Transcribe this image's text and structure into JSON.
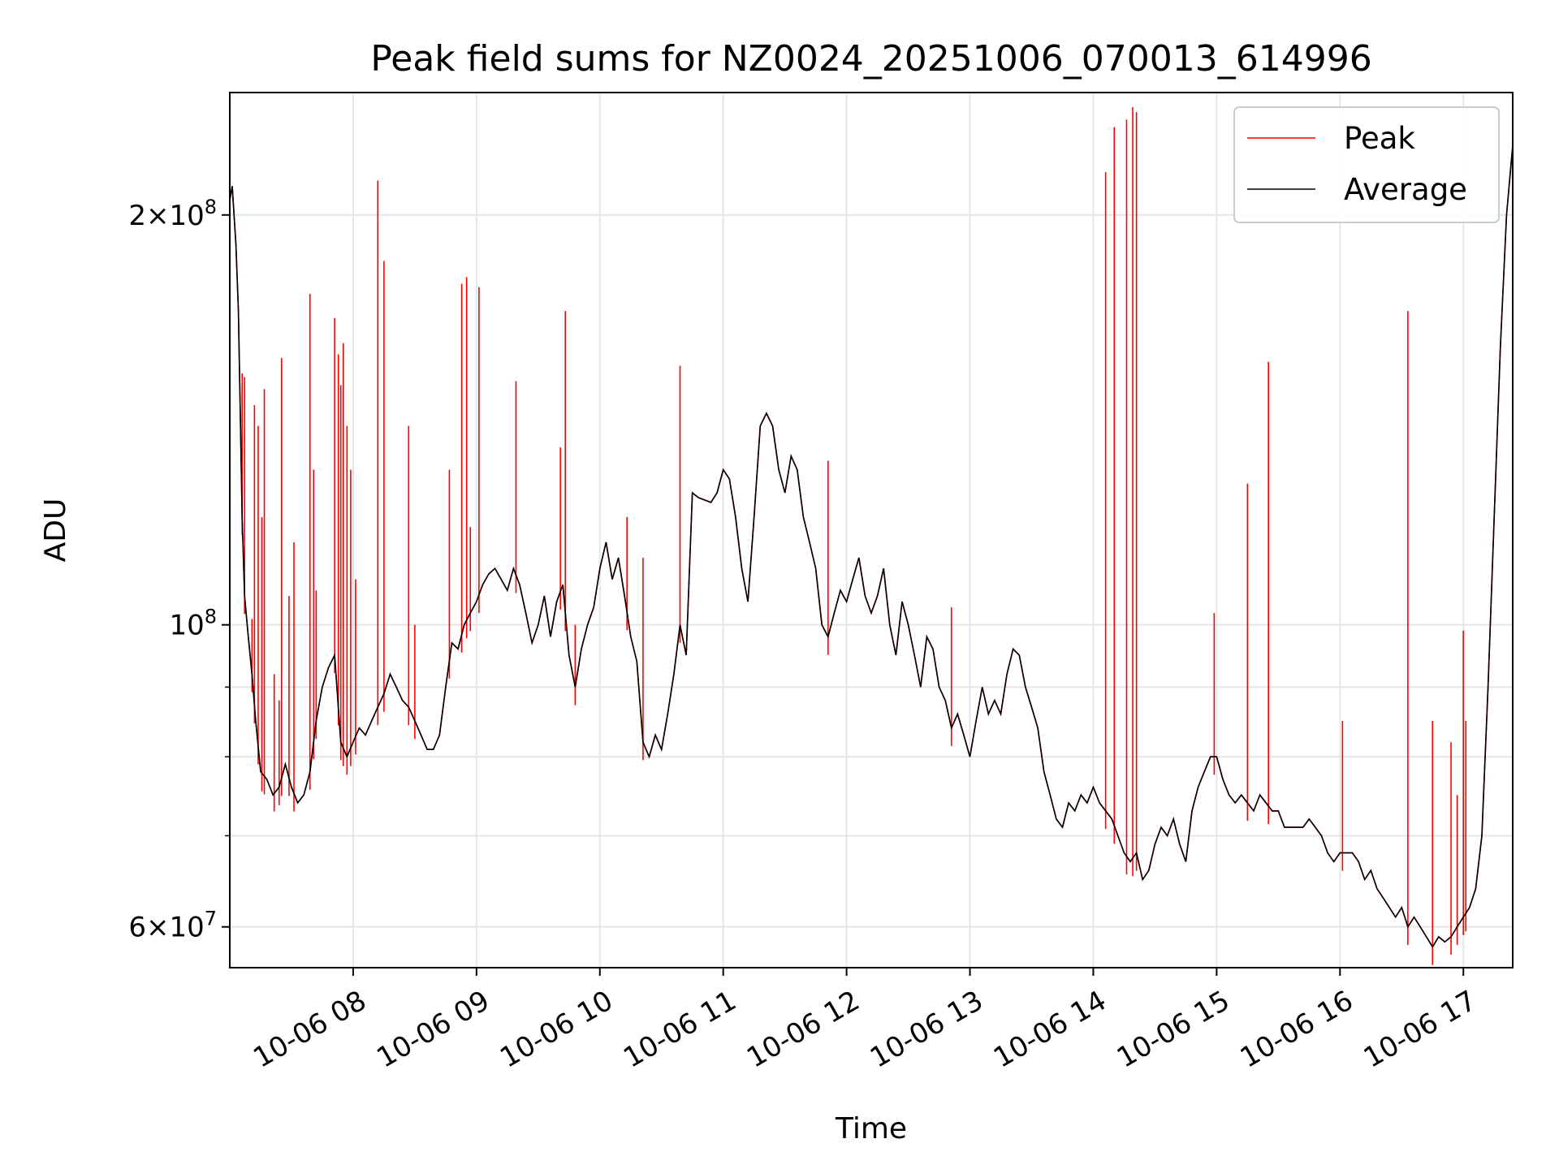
{
  "chart_data": {
    "type": "line",
    "title": "Peak field sums for NZ0024_20251006_070013_614996",
    "xlabel": "Time",
    "ylabel": "ADU",
    "yscale": "log",
    "grid": true,
    "legend_position": "upper-right",
    "xlim_hours": [
      7.0,
      17.4
    ],
    "ylim": [
      56000000,
      246000000
    ],
    "x_ticks": [
      {
        "hour": 8,
        "label": "10-06 08"
      },
      {
        "hour": 9,
        "label": "10-06 09"
      },
      {
        "hour": 10,
        "label": "10-06 10"
      },
      {
        "hour": 11,
        "label": "10-06 11"
      },
      {
        "hour": 12,
        "label": "10-06 12"
      },
      {
        "hour": 13,
        "label": "10-06 13"
      },
      {
        "hour": 14,
        "label": "10-06 14"
      },
      {
        "hour": 15,
        "label": "10-06 15"
      },
      {
        "hour": 16,
        "label": "10-06 16"
      },
      {
        "hour": 17,
        "label": "10-06 17"
      }
    ],
    "y_major_ticks": [
      {
        "value": 60000000,
        "mantissa": "6",
        "exponent": "7",
        "has_mantissa": true
      },
      {
        "value": 100000000,
        "mantissa": "",
        "exponent": "8",
        "has_mantissa": false
      },
      {
        "value": 200000000,
        "mantissa": "2",
        "exponent": "8",
        "has_mantissa": true
      }
    ],
    "y_tick_base": "10",
    "y_tick_times": "×",
    "y_minor_ticks": [
      70000000,
      80000000,
      90000000
    ],
    "series": [
      {
        "name": "Average",
        "color": "#000000",
        "points": [
          [
            7.0,
            205000000
          ],
          [
            7.02,
            210000000
          ],
          [
            7.05,
            190000000
          ],
          [
            7.07,
            170000000
          ],
          [
            7.09,
            135000000
          ],
          [
            7.1,
            120000000
          ],
          [
            7.12,
            105000000
          ],
          [
            7.15,
            98000000
          ],
          [
            7.18,
            92000000
          ],
          [
            7.21,
            85000000
          ],
          [
            7.25,
            78000000
          ],
          [
            7.3,
            77000000
          ],
          [
            7.35,
            75000000
          ],
          [
            7.4,
            76000000
          ],
          [
            7.45,
            79000000
          ],
          [
            7.5,
            76000000
          ],
          [
            7.55,
            74000000
          ],
          [
            7.6,
            75000000
          ],
          [
            7.65,
            78000000
          ],
          [
            7.7,
            85000000
          ],
          [
            7.75,
            90000000
          ],
          [
            7.8,
            93000000
          ],
          [
            7.85,
            95000000
          ],
          [
            7.9,
            82000000
          ],
          [
            7.95,
            80000000
          ],
          [
            8.0,
            82000000
          ],
          [
            8.05,
            84000000
          ],
          [
            8.1,
            83000000
          ],
          [
            8.15,
            85000000
          ],
          [
            8.2,
            87000000
          ],
          [
            8.25,
            89000000
          ],
          [
            8.3,
            92000000
          ],
          [
            8.35,
            90000000
          ],
          [
            8.4,
            88000000
          ],
          [
            8.45,
            87000000
          ],
          [
            8.5,
            85000000
          ],
          [
            8.55,
            83000000
          ],
          [
            8.6,
            81000000
          ],
          [
            8.65,
            81000000
          ],
          [
            8.7,
            83000000
          ],
          [
            8.75,
            90000000
          ],
          [
            8.8,
            97000000
          ],
          [
            8.85,
            96000000
          ],
          [
            8.9,
            100000000
          ],
          [
            8.95,
            102000000
          ],
          [
            9.0,
            104000000
          ],
          [
            9.05,
            107000000
          ],
          [
            9.1,
            109000000
          ],
          [
            9.15,
            110000000
          ],
          [
            9.2,
            108000000
          ],
          [
            9.25,
            106000000
          ],
          [
            9.3,
            110000000
          ],
          [
            9.35,
            107000000
          ],
          [
            9.4,
            102000000
          ],
          [
            9.45,
            97000000
          ],
          [
            9.5,
            100000000
          ],
          [
            9.55,
            105000000
          ],
          [
            9.6,
            98000000
          ],
          [
            9.65,
            104000000
          ],
          [
            9.7,
            107000000
          ],
          [
            9.75,
            95000000
          ],
          [
            9.8,
            90000000
          ],
          [
            9.85,
            96000000
          ],
          [
            9.9,
            100000000
          ],
          [
            9.95,
            103000000
          ],
          [
            10.0,
            110000000
          ],
          [
            10.05,
            115000000
          ],
          [
            10.1,
            108000000
          ],
          [
            10.15,
            112000000
          ],
          [
            10.2,
            105000000
          ],
          [
            10.25,
            98000000
          ],
          [
            10.3,
            94000000
          ],
          [
            10.35,
            82000000
          ],
          [
            10.4,
            80000000
          ],
          [
            10.45,
            83000000
          ],
          [
            10.5,
            81000000
          ],
          [
            10.55,
            86000000
          ],
          [
            10.6,
            92000000
          ],
          [
            10.65,
            100000000
          ],
          [
            10.7,
            95000000
          ],
          [
            10.75,
            125000000
          ],
          [
            10.8,
            124000000
          ],
          [
            10.9,
            123000000
          ],
          [
            10.95,
            125000000
          ],
          [
            11.0,
            130000000
          ],
          [
            11.05,
            128000000
          ],
          [
            11.1,
            120000000
          ],
          [
            11.15,
            110000000
          ],
          [
            11.2,
            104000000
          ],
          [
            11.25,
            120000000
          ],
          [
            11.3,
            140000000
          ],
          [
            11.35,
            143000000
          ],
          [
            11.4,
            140000000
          ],
          [
            11.45,
            130000000
          ],
          [
            11.5,
            125000000
          ],
          [
            11.55,
            133000000
          ],
          [
            11.6,
            130000000
          ],
          [
            11.65,
            120000000
          ],
          [
            11.7,
            115000000
          ],
          [
            11.75,
            110000000
          ],
          [
            11.8,
            100000000
          ],
          [
            11.85,
            98000000
          ],
          [
            11.9,
            102000000
          ],
          [
            11.95,
            106000000
          ],
          [
            12.0,
            104000000
          ],
          [
            12.05,
            108000000
          ],
          [
            12.1,
            112000000
          ],
          [
            12.15,
            105000000
          ],
          [
            12.2,
            102000000
          ],
          [
            12.25,
            105000000
          ],
          [
            12.3,
            110000000
          ],
          [
            12.35,
            100000000
          ],
          [
            12.4,
            95000000
          ],
          [
            12.45,
            104000000
          ],
          [
            12.5,
            100000000
          ],
          [
            12.55,
            95000000
          ],
          [
            12.6,
            90000000
          ],
          [
            12.65,
            98000000
          ],
          [
            12.7,
            96000000
          ],
          [
            12.75,
            90000000
          ],
          [
            12.8,
            88000000
          ],
          [
            12.85,
            84000000
          ],
          [
            12.9,
            86000000
          ],
          [
            12.95,
            83000000
          ],
          [
            13.0,
            80000000
          ],
          [
            13.05,
            85000000
          ],
          [
            13.1,
            90000000
          ],
          [
            13.15,
            86000000
          ],
          [
            13.2,
            88000000
          ],
          [
            13.25,
            86000000
          ],
          [
            13.3,
            92000000
          ],
          [
            13.35,
            96000000
          ],
          [
            13.4,
            95000000
          ],
          [
            13.45,
            90000000
          ],
          [
            13.5,
            87000000
          ],
          [
            13.55,
            84000000
          ],
          [
            13.6,
            78000000
          ],
          [
            13.65,
            75000000
          ],
          [
            13.7,
            72000000
          ],
          [
            13.75,
            71000000
          ],
          [
            13.8,
            74000000
          ],
          [
            13.85,
            73000000
          ],
          [
            13.9,
            75000000
          ],
          [
            13.95,
            74000000
          ],
          [
            14.0,
            76000000
          ],
          [
            14.05,
            74000000
          ],
          [
            14.1,
            73000000
          ],
          [
            14.15,
            72000000
          ],
          [
            14.2,
            70000000
          ],
          [
            14.25,
            68000000
          ],
          [
            14.3,
            67000000
          ],
          [
            14.35,
            68000000
          ],
          [
            14.4,
            65000000
          ],
          [
            14.45,
            66000000
          ],
          [
            14.5,
            69000000
          ],
          [
            14.55,
            71000000
          ],
          [
            14.6,
            70000000
          ],
          [
            14.65,
            72000000
          ],
          [
            14.7,
            69000000
          ],
          [
            14.75,
            67000000
          ],
          [
            14.8,
            73000000
          ],
          [
            14.85,
            76000000
          ],
          [
            14.9,
            78000000
          ],
          [
            14.95,
            80000000
          ],
          [
            15.0,
            80000000
          ],
          [
            15.05,
            77000000
          ],
          [
            15.1,
            75000000
          ],
          [
            15.15,
            74000000
          ],
          [
            15.2,
            75000000
          ],
          [
            15.25,
            74000000
          ],
          [
            15.3,
            73000000
          ],
          [
            15.35,
            75000000
          ],
          [
            15.4,
            74000000
          ],
          [
            15.45,
            73000000
          ],
          [
            15.5,
            73000000
          ],
          [
            15.55,
            71000000
          ],
          [
            15.6,
            71000000
          ],
          [
            15.65,
            71000000
          ],
          [
            15.7,
            71000000
          ],
          [
            15.75,
            72000000
          ],
          [
            15.8,
            71000000
          ],
          [
            15.85,
            70000000
          ],
          [
            15.9,
            68000000
          ],
          [
            15.95,
            67000000
          ],
          [
            16.0,
            68000000
          ],
          [
            16.05,
            68000000
          ],
          [
            16.1,
            68000000
          ],
          [
            16.15,
            67000000
          ],
          [
            16.2,
            65000000
          ],
          [
            16.25,
            66000000
          ],
          [
            16.3,
            64000000
          ],
          [
            16.35,
            63000000
          ],
          [
            16.4,
            62000000
          ],
          [
            16.45,
            61000000
          ],
          [
            16.5,
            62000000
          ],
          [
            16.55,
            60000000
          ],
          [
            16.6,
            61000000
          ],
          [
            16.65,
            60000000
          ],
          [
            16.7,
            59000000
          ],
          [
            16.75,
            58000000
          ],
          [
            16.8,
            59000000
          ],
          [
            16.85,
            58500000
          ],
          [
            16.9,
            59000000
          ],
          [
            16.95,
            60000000
          ],
          [
            17.0,
            61000000
          ],
          [
            17.05,
            62000000
          ],
          [
            17.1,
            64000000
          ],
          [
            17.15,
            70000000
          ],
          [
            17.2,
            90000000
          ],
          [
            17.25,
            120000000
          ],
          [
            17.3,
            160000000
          ],
          [
            17.35,
            200000000
          ],
          [
            17.4,
            225000000
          ]
        ]
      },
      {
        "name": "Peak",
        "color": "#ff0000",
        "spikes": [
          [
            7.1,
            153000000
          ],
          [
            7.12,
            152000000
          ],
          [
            7.18,
            101000000
          ],
          [
            7.2,
            145000000
          ],
          [
            7.23,
            140000000
          ],
          [
            7.26,
            120000000
          ],
          [
            7.28,
            149000000
          ],
          [
            7.36,
            92000000
          ],
          [
            7.4,
            88000000
          ],
          [
            7.42,
            157000000
          ],
          [
            7.48,
            105000000
          ],
          [
            7.52,
            115000000
          ],
          [
            7.65,
            175000000
          ],
          [
            7.68,
            130000000
          ],
          [
            7.7,
            106000000
          ],
          [
            7.85,
            168000000
          ],
          [
            7.88,
            158000000
          ],
          [
            7.9,
            150000000
          ],
          [
            7.92,
            161000000
          ],
          [
            7.95,
            140000000
          ],
          [
            7.98,
            130000000
          ],
          [
            8.02,
            108000000
          ],
          [
            8.2,
            212000000
          ],
          [
            8.25,
            185000000
          ],
          [
            8.45,
            140000000
          ],
          [
            8.5,
            100000000
          ],
          [
            8.78,
            130000000
          ],
          [
            8.88,
            178000000
          ],
          [
            8.92,
            180000000
          ],
          [
            8.95,
            118000000
          ],
          [
            9.02,
            177000000
          ],
          [
            9.32,
            151000000
          ],
          [
            9.68,
            135000000
          ],
          [
            9.72,
            170000000
          ],
          [
            9.8,
            100000000
          ],
          [
            10.22,
            120000000
          ],
          [
            10.35,
            112000000
          ],
          [
            10.65,
            155000000
          ],
          [
            11.85,
            132000000
          ],
          [
            12.85,
            103000000
          ],
          [
            14.1,
            215000000
          ],
          [
            14.17,
            232000000
          ],
          [
            14.27,
            235000000
          ],
          [
            14.32,
            240000000
          ],
          [
            14.35,
            238000000
          ],
          [
            14.98,
            102000000
          ],
          [
            15.25,
            127000000
          ],
          [
            15.42,
            156000000
          ],
          [
            16.02,
            85000000
          ],
          [
            16.55,
            170000000
          ],
          [
            16.75,
            85000000
          ],
          [
            16.9,
            82000000
          ],
          [
            16.95,
            75000000
          ],
          [
            17.0,
            99000000
          ],
          [
            17.02,
            85000000
          ]
        ]
      }
    ]
  }
}
